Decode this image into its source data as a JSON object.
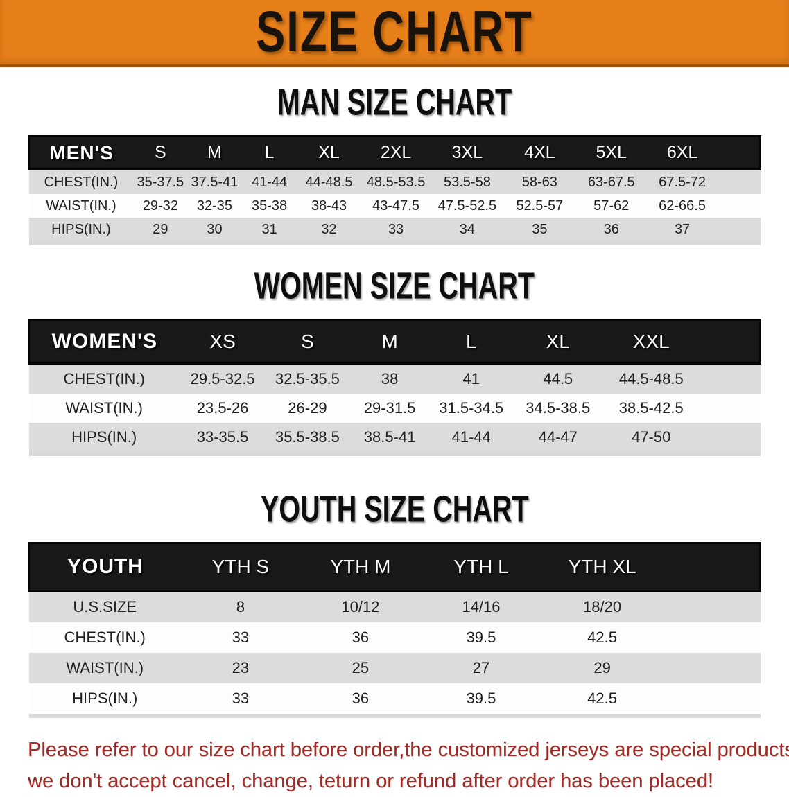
{
  "banner": {
    "title": "SIZE CHART"
  },
  "colors": {
    "banner_orange": "#e8801a",
    "header_black": "#191919",
    "stripe_gray": "#dcdcdc",
    "note_red": "#9e2b25"
  },
  "men": {
    "title": "MAN SIZE CHART",
    "header_label": "MEN'S",
    "columns": [
      "S",
      "M",
      "L",
      "XL",
      "2XL",
      "3XL",
      "4XL",
      "5XL",
      "6XL"
    ],
    "rows": [
      {
        "label": "CHEST(IN.)",
        "values": [
          "35-37.5",
          "37.5-41",
          "41-44",
          "44-48.5",
          "48.5-53.5",
          "53.5-58",
          "58-63",
          "63-67.5",
          "67.5-72"
        ]
      },
      {
        "label": "WAIST(IN.)",
        "values": [
          "29-32",
          "32-35",
          "35-38",
          "38-43",
          "43-47.5",
          "47.5-52.5",
          "52.5-57",
          "57-62",
          "62-66.5"
        ]
      },
      {
        "label": "HIPS(IN.)",
        "values": [
          "29",
          "30",
          "31",
          "32",
          "33",
          "34",
          "35",
          "36",
          "37"
        ]
      }
    ]
  },
  "women": {
    "title": "WOMEN SIZE CHART",
    "header_label": "WOMEN'S",
    "columns": [
      "XS",
      "S",
      "M",
      "L",
      "XL",
      "XXL"
    ],
    "rows": [
      {
        "label": "CHEST(IN.)",
        "values": [
          "29.5-32.5",
          "32.5-35.5",
          "38",
          "41",
          "44.5",
          "44.5-48.5"
        ]
      },
      {
        "label": "WAIST(IN.)",
        "values": [
          "23.5-26",
          "26-29",
          "29-31.5",
          "31.5-34.5",
          "34.5-38.5",
          "38.5-42.5"
        ]
      },
      {
        "label": "HIPS(IN.)",
        "values": [
          "33-35.5",
          "35.5-38.5",
          "38.5-41",
          "41-44",
          "44-47",
          "47-50"
        ]
      }
    ]
  },
  "youth": {
    "title": "YOUTH SIZE CHART",
    "header_label": "YOUTH",
    "columns": [
      "YTH S",
      "YTH M",
      "YTH L",
      "YTH XL"
    ],
    "rows": [
      {
        "label": "U.S.SIZE",
        "values": [
          "8",
          "10/12",
          "14/16",
          "18/20"
        ]
      },
      {
        "label": "CHEST(IN.)",
        "values": [
          "33",
          "36",
          "39.5",
          "42.5"
        ]
      },
      {
        "label": "WAIST(IN.)",
        "values": [
          "23",
          "25",
          "27",
          "29"
        ]
      },
      {
        "label": "HIPS(IN.)",
        "values": [
          "33",
          "36",
          "39.5",
          "42.5"
        ]
      }
    ]
  },
  "note": {
    "line1": "Please refer to our size chart before order,the customized jerseys are special products,",
    "line2": "we don't accept cancel, change, teturn or refund after order has been placed!"
  }
}
